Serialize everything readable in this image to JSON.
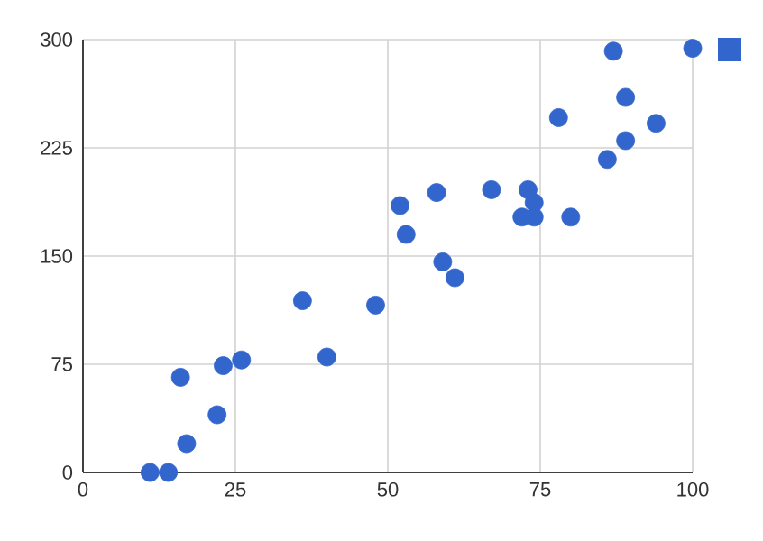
{
  "chart_data": {
    "type": "scatter",
    "color": "#3366cc",
    "grid": true,
    "x": [
      11,
      14,
      17,
      16,
      22,
      23,
      26,
      36,
      40,
      48,
      52,
      53,
      58,
      59,
      61,
      67,
      72,
      73,
      74,
      74,
      80,
      78,
      86,
      87,
      89,
      89,
      94,
      100
    ],
    "values": [
      0,
      0,
      20,
      66,
      40,
      74,
      78,
      119,
      80,
      116,
      185,
      165,
      194,
      146,
      135,
      196,
      177,
      196,
      187,
      177,
      177,
      246,
      217,
      292,
      260,
      230,
      242,
      294
    ],
    "xlim": [
      0,
      100
    ],
    "xticks": [
      0,
      25,
      50,
      75,
      100
    ],
    "ylim": [
      0,
      300
    ],
    "yticks": [
      0,
      75,
      150,
      225,
      300
    ]
  }
}
